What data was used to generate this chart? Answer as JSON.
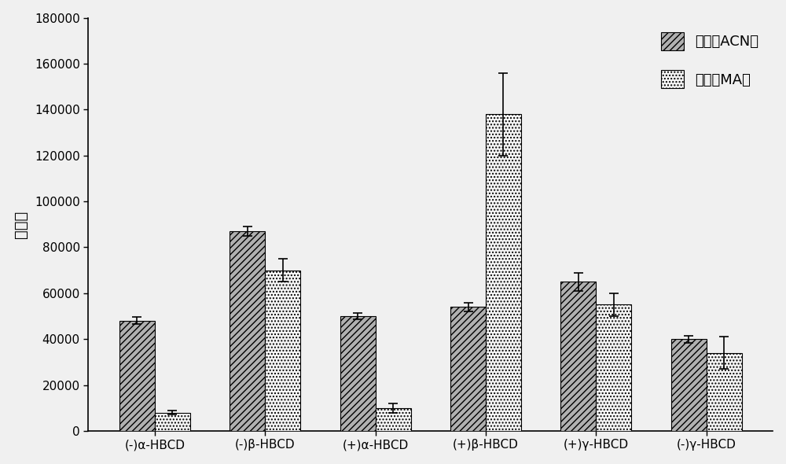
{
  "categories": [
    "(-)α-HBCD",
    "(-)β-HBCD",
    "(+)α-HBCD",
    "(+)β-HBCD",
    "(+)γ-HBCD",
    "(-)γ-HBCD"
  ],
  "acn_values": [
    48000,
    87000,
    50000,
    54000,
    65000,
    40000
  ],
  "acn_errors": [
    1500,
    2000,
    1500,
    2000,
    4000,
    1500
  ],
  "ma_values": [
    8000,
    70000,
    10000,
    138000,
    55000,
    34000
  ],
  "ma_errors": [
    1000,
    5000,
    2000,
    18000,
    5000,
    7000
  ],
  "ylabel": "峰面积",
  "ylim": [
    0,
    180000
  ],
  "yticks": [
    0,
    20000,
    40000,
    60000,
    80000,
    100000,
    120000,
    140000,
    160000,
    180000
  ],
  "legend_acn": "乙腈（ACN）",
  "legend_ma": "甲醇（MA）",
  "bar_width": 0.32,
  "acn_hatch": "////",
  "ma_hatch": "....",
  "acn_facecolor": "#b0b0b0",
  "ma_facecolor": "#f5f5f5",
  "acn_edgecolor": "#000000",
  "ma_edgecolor": "#000000",
  "background_color": "#f0f0f0",
  "axis_fontsize": 14,
  "tick_fontsize": 11,
  "legend_fontsize": 13
}
